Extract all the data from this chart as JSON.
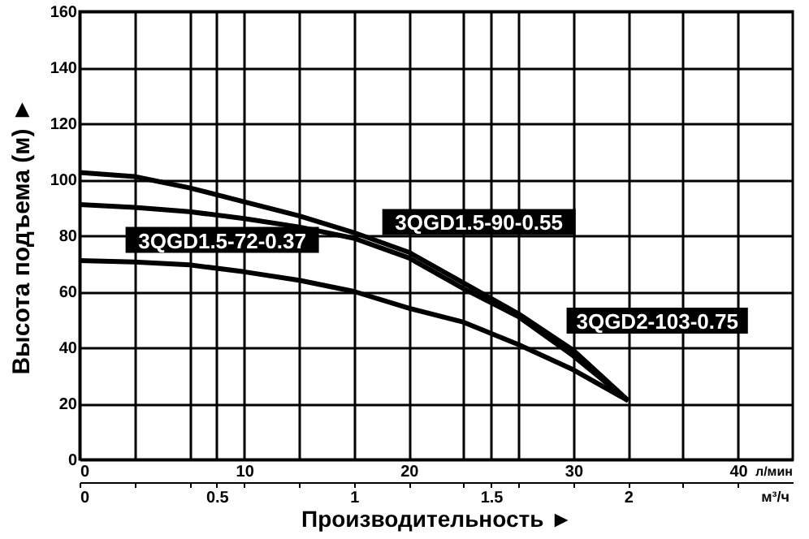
{
  "chart_data": {
    "type": "line",
    "xlabel": "Производительность ►",
    "ylabel": "Высота подъема (м) ►",
    "x2label": "л/мин",
    "annotations": [
      "м³/ч"
    ],
    "x": [
      0,
      0.2,
      0.4,
      0.6,
      0.8,
      1.0,
      1.2,
      1.4,
      1.6,
      1.8,
      2.0
    ],
    "series": [
      {
        "name": "3QGD1.5-72-0.37",
        "color": "#000000",
        "values": [
          71,
          70.5,
          69.5,
          67,
          64,
          60,
          54,
          49,
          41,
          32,
          21
        ]
      },
      {
        "name": "3QGD1.5-90-0.55",
        "color": "#000000",
        "values": [
          91,
          90,
          88.5,
          86,
          83,
          79,
          72,
          61,
          51,
          37,
          21
        ]
      },
      {
        "name": "3QGD2-103-0.75",
        "color": "#000000",
        "values": [
          102.5,
          101,
          97,
          92,
          87,
          81,
          74,
          63,
          52,
          39,
          21
        ]
      }
    ],
    "xlim": [
      0,
      2.6
    ],
    "xticks": [
      0,
      {
        "value": 0.2,
        "label": null
      },
      {
        "value": 0.4,
        "label": null
      },
      0.5,
      {
        "value": 0.6,
        "label": null
      },
      {
        "value": 0.8,
        "label": null
      },
      1,
      {
        "value": 1.2,
        "label": null
      },
      {
        "value": 1.4,
        "label": null
      },
      1.5,
      {
        "value": 1.6,
        "label": null
      },
      {
        "value": 1.8,
        "label": null
      },
      2,
      {
        "value": 2.2,
        "label": null
      },
      {
        "value": 2.4,
        "label": null
      }
    ],
    "x2lim": [
      0,
      43.33
    ],
    "x2ticks": [
      0,
      10,
      20,
      30,
      40
    ],
    "ylim": [
      0,
      160
    ],
    "yticks": [
      0,
      20,
      40,
      60,
      80,
      100,
      120,
      140,
      160
    ],
    "grid": true,
    "marker": "none",
    "line_style": "solid"
  }
}
